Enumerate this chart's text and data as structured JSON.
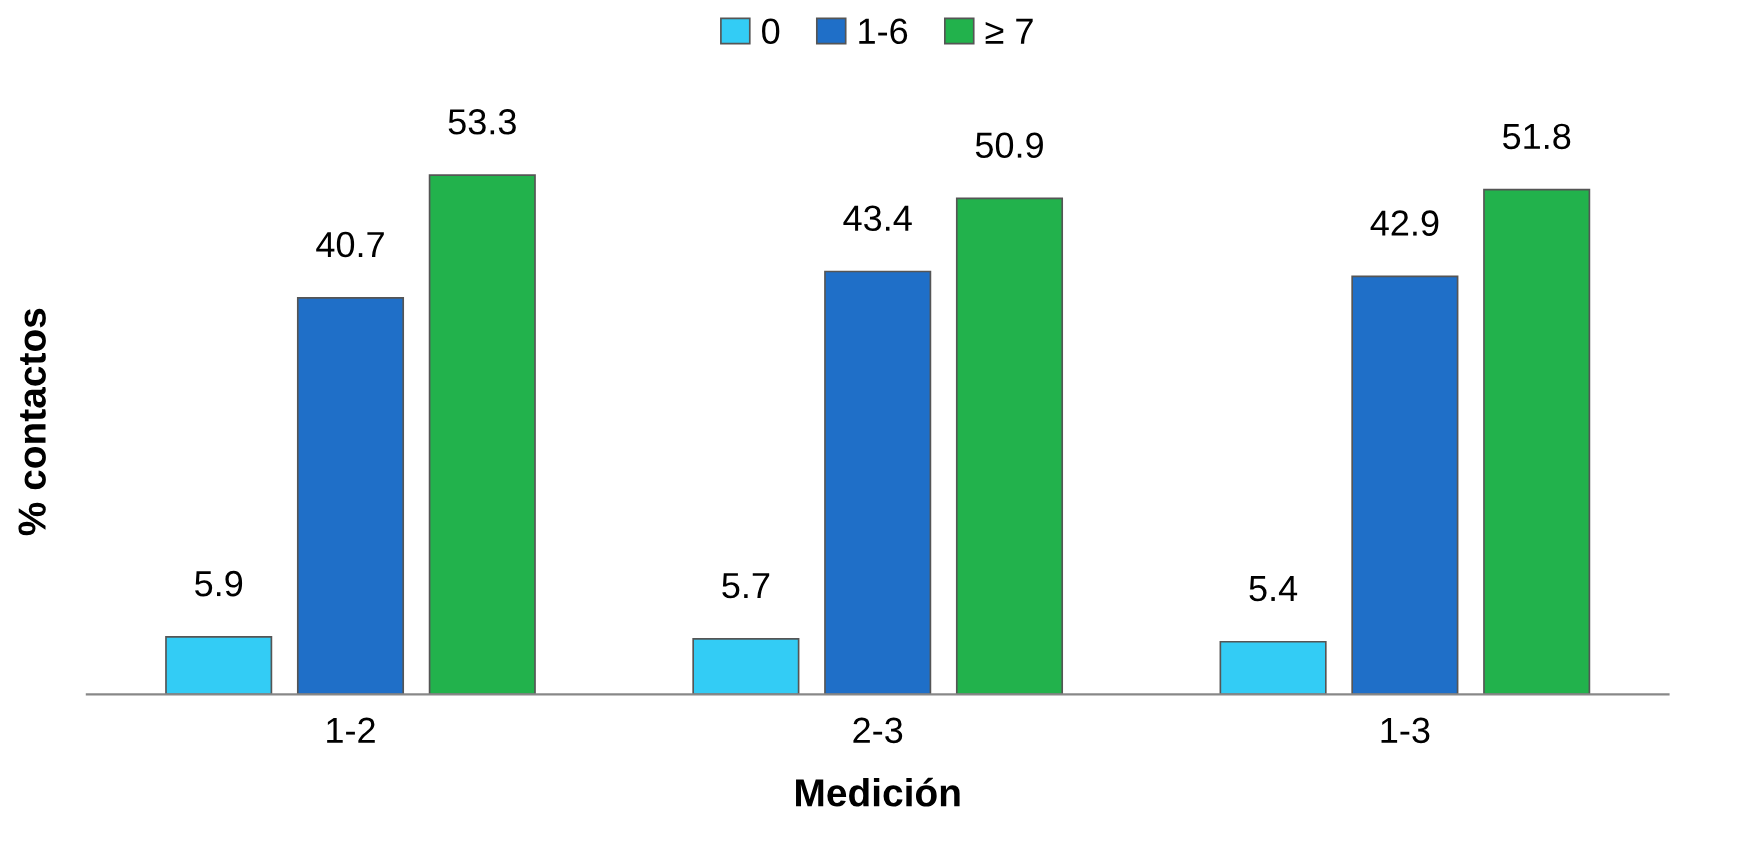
{
  "chart_data": {
    "type": "bar",
    "xlabel": "Medición",
    "ylabel": "% contactos",
    "categories": [
      "1-2",
      "2-3",
      "1-3"
    ],
    "series": [
      {
        "name": "0",
        "color": "#33ccf5",
        "values": [
          5.9,
          5.7,
          5.4
        ]
      },
      {
        "name": "1-6",
        "color": "#1f6fc8",
        "values": [
          40.7,
          43.4,
          42.9
        ]
      },
      {
        "name": "≥ 7",
        "color": "#22b24c",
        "values": [
          53.3,
          50.9,
          51.8
        ]
      }
    ],
    "tick_labels": "x",
    "data_labels": true,
    "legend": "top",
    "grid": false
  }
}
